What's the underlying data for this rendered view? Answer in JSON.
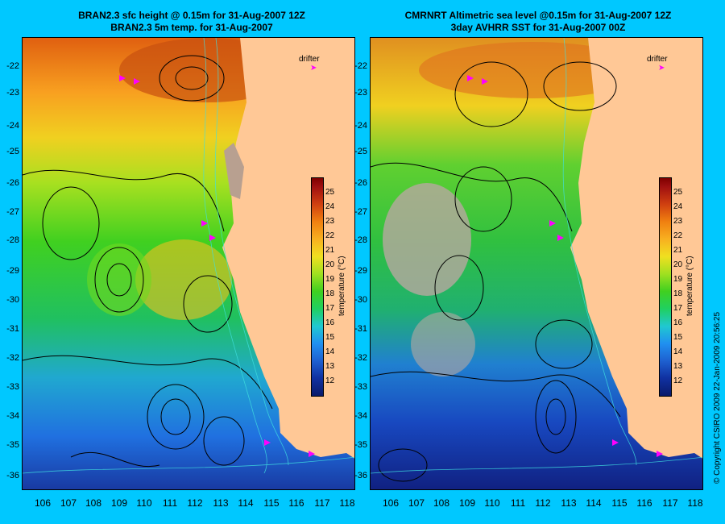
{
  "left": {
    "title_line1": "BRAN2.3 sfc height @ 0.15m for 31-Aug-2007 12Z",
    "title_line2": "BRAN2.3 5m temp. for 31-Aug-2007"
  },
  "right": {
    "title_line1": "CMRNRT Altimetric sea level  @0.15m  for 31-Aug-2007 12Z",
    "title_line2": "3day AVHRR SST for 31-Aug-2007 00Z"
  },
  "y_ticks": [
    "-22",
    "-23",
    "-24",
    "-25",
    "-26",
    "-27",
    "-28",
    "-29",
    "-30",
    "-31",
    "-32",
    "-33",
    "-34",
    "-35",
    "-36"
  ],
  "x_ticks": [
    "106",
    "107",
    "108",
    "109",
    "110",
    "111",
    "112",
    "113",
    "114",
    "115",
    "116",
    "117",
    "118"
  ],
  "colorbar": {
    "ticks": [
      "25",
      "24",
      "23",
      "22",
      "21",
      "20",
      "19",
      "18",
      "17",
      "16",
      "15",
      "14",
      "13",
      "12"
    ],
    "unit": "temperature (°C)"
  },
  "legend": {
    "drifter_label": "drifter",
    "drifter_arrow": "➤"
  },
  "copyright": "© Copyright CSIRO 2009   22-Jan-2009 20:56:25",
  "colors": {
    "background": "#00c8ff",
    "land": "#ffc896",
    "contour": "#000000",
    "bathymetry": "#40e0e0",
    "drifter": "#ff00ff"
  },
  "map": {
    "lon_range": [
      105.5,
      118.3
    ],
    "lat_range": [
      -36.5,
      -21.3
    ]
  }
}
